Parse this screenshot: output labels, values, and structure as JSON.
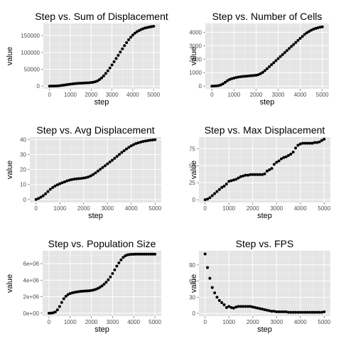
{
  "panel_bg": "#e5e5e5",
  "grid_color": "#ffffff",
  "point_color": "#000000",
  "chart_data": [
    {
      "type": "scatter",
      "title": "Step vs. Sum of Displacement",
      "xlabel": "step",
      "ylabel": "value",
      "grid": true,
      "xlim": [
        -300,
        5300
      ],
      "ylim": [
        -8000,
        186000
      ],
      "xticks": [
        0,
        1000,
        2000,
        3000,
        4000,
        5000
      ],
      "xtick_labels": [
        "0",
        "1000",
        "2000",
        "3000",
        "4000",
        "5000"
      ],
      "yticks": [
        0,
        50000,
        100000,
        150000
      ],
      "ytick_labels": [
        "0",
        "50000",
        "100000",
        "150000"
      ],
      "x": [
        0,
        100,
        200,
        300,
        400,
        500,
        600,
        700,
        800,
        900,
        1000,
        1100,
        1200,
        1300,
        1400,
        1500,
        1600,
        1700,
        1800,
        1900,
        2000,
        2100,
        2200,
        2300,
        2400,
        2500,
        2600,
        2700,
        2800,
        2900,
        3000,
        3100,
        3200,
        3300,
        3400,
        3500,
        3600,
        3700,
        3800,
        3900,
        4000,
        4100,
        4200,
        4300,
        4400,
        4500,
        4600,
        4700,
        4800,
        4900,
        5000
      ],
      "y": [
        0,
        100,
        200,
        400,
        800,
        1400,
        2200,
        3100,
        4000,
        4900,
        5800,
        6500,
        7200,
        7800,
        8300,
        8700,
        9000,
        9300,
        9600,
        10000,
        10600,
        11500,
        13000,
        15500,
        19500,
        24500,
        30500,
        37500,
        45500,
        54000,
        63000,
        72500,
        82000,
        91500,
        101000,
        110500,
        120000,
        129000,
        137500,
        145000,
        151500,
        157000,
        161500,
        165000,
        168000,
        170500,
        172500,
        174000,
        175500,
        176500,
        177500
      ]
    },
    {
      "type": "scatter",
      "title": "Step vs. Number of Cells",
      "xlabel": "step",
      "ylabel": "value",
      "grid": true,
      "xlim": [
        -300,
        5300
      ],
      "ylim": [
        -200,
        4650
      ],
      "xticks": [
        0,
        1000,
        2000,
        3000,
        4000,
        5000
      ],
      "xtick_labels": [
        "0",
        "1000",
        "2000",
        "3000",
        "4000",
        "5000"
      ],
      "yticks": [
        0,
        1000,
        2000,
        3000,
        4000
      ],
      "ytick_labels": [
        "0",
        "1000",
        "2000",
        "3000",
        "4000"
      ],
      "x": [
        0,
        100,
        200,
        300,
        400,
        500,
        600,
        700,
        800,
        900,
        1000,
        1100,
        1200,
        1300,
        1400,
        1500,
        1600,
        1700,
        1800,
        1900,
        2000,
        2100,
        2200,
        2300,
        2400,
        2500,
        2600,
        2700,
        2800,
        2900,
        3000,
        3100,
        3200,
        3300,
        3400,
        3500,
        3600,
        3700,
        3800,
        3900,
        4000,
        4100,
        4200,
        4300,
        4400,
        4500,
        4600,
        4700,
        4800,
        4900,
        5000
      ],
      "y": [
        0,
        5,
        15,
        40,
        90,
        170,
        280,
        400,
        490,
        550,
        600,
        640,
        670,
        695,
        715,
        730,
        745,
        760,
        775,
        790,
        810,
        850,
        920,
        1020,
        1150,
        1290,
        1440,
        1590,
        1740,
        1890,
        2040,
        2190,
        2340,
        2490,
        2640,
        2790,
        2940,
        3090,
        3240,
        3390,
        3540,
        3690,
        3840,
        3960,
        4060,
        4150,
        4220,
        4280,
        4330,
        4370,
        4400
      ]
    },
    {
      "type": "scatter",
      "title": "Step vs. Avg Displacement",
      "xlabel": "step",
      "ylabel": "value",
      "grid": true,
      "xlim": [
        -260,
        5260
      ],
      "ylim": [
        -2,
        41.7
      ],
      "xticks": [
        0,
        1000,
        2000,
        3000,
        4000,
        5000
      ],
      "xtick_labels": [
        "0",
        "1000",
        "2000",
        "3000",
        "4000",
        "5000"
      ],
      "yticks": [
        0,
        10,
        20,
        30,
        40
      ],
      "ytick_labels": [
        "0",
        "10",
        "20",
        "30",
        "40"
      ],
      "x": [
        0,
        100,
        200,
        300,
        400,
        500,
        600,
        700,
        800,
        900,
        1000,
        1100,
        1200,
        1300,
        1400,
        1500,
        1600,
        1700,
        1800,
        1900,
        2000,
        2100,
        2200,
        2300,
        2400,
        2500,
        2600,
        2700,
        2800,
        2900,
        3000,
        3100,
        3200,
        3300,
        3400,
        3500,
        3600,
        3700,
        3800,
        3900,
        4000,
        4100,
        4200,
        4300,
        4400,
        4500,
        4600,
        4700,
        4800,
        4900,
        5000
      ],
      "y": [
        0,
        0.7,
        1.5,
        2.5,
        3.8,
        5.3,
        6.8,
        8.0,
        9.0,
        9.8,
        10.5,
        11.2,
        11.8,
        12.4,
        12.9,
        13.3,
        13.6,
        13.8,
        14.0,
        14.1,
        14.3,
        14.6,
        15.1,
        15.8,
        16.7,
        17.8,
        19.0,
        20.2,
        21.4,
        22.6,
        23.8,
        25.0,
        26.2,
        27.5,
        28.8,
        30.1,
        31.4,
        32.6,
        33.8,
        34.9,
        35.9,
        36.7,
        37.4,
        37.9,
        38.4,
        38.8,
        39.1,
        39.4,
        39.6,
        39.8,
        40.0
      ]
    },
    {
      "type": "scatter",
      "title": "Step vs. Max Displacement",
      "xlabel": "step",
      "ylabel": "value",
      "grid": true,
      "xlim": [
        -260,
        5260
      ],
      "ylim": [
        -4,
        92
      ],
      "xticks": [
        0,
        1000,
        2000,
        3000,
        4000,
        5000
      ],
      "xtick_labels": [
        "0",
        "1000",
        "2000",
        "3000",
        "4000",
        "5000"
      ],
      "yticks": [
        0,
        25,
        50,
        75
      ],
      "ytick_labels": [
        "0",
        "25",
        "50",
        "75"
      ],
      "x": [
        0,
        100,
        200,
        300,
        400,
        500,
        600,
        700,
        800,
        900,
        1000,
        1100,
        1200,
        1300,
        1400,
        1500,
        1600,
        1700,
        1800,
        1900,
        2000,
        2100,
        2200,
        2300,
        2400,
        2500,
        2600,
        2700,
        2800,
        2900,
        3000,
        3100,
        3200,
        3300,
        3400,
        3500,
        3600,
        3700,
        3800,
        3900,
        4000,
        4100,
        4200,
        4300,
        4400,
        4500,
        4600,
        4700,
        4800,
        4900,
        5000
      ],
      "y": [
        0,
        1,
        3,
        6,
        9,
        12,
        15,
        18,
        20,
        23,
        27,
        28,
        29,
        30,
        32,
        34,
        35,
        36,
        36,
        37,
        37,
        37,
        37,
        37,
        37,
        38,
        42,
        44,
        46,
        52,
        55,
        57,
        60,
        62,
        63,
        65,
        67,
        70,
        76,
        80,
        82,
        83,
        83,
        83,
        83,
        83,
        84,
        84,
        85,
        87,
        89
      ]
    },
    {
      "type": "scatter",
      "title": "Step vs. Population Size",
      "xlabel": "step",
      "ylabel": "value",
      "grid": true,
      "xlim": [
        -300,
        5300
      ],
      "ylim": [
        -360000,
        7560000
      ],
      "xticks": [
        0,
        1000,
        2000,
        3000,
        4000,
        5000
      ],
      "xtick_labels": [
        "0",
        "1000",
        "2000",
        "3000",
        "4000",
        "5000"
      ],
      "yticks": [
        0,
        2000000,
        4000000,
        6000000
      ],
      "ytick_labels": [
        "0e+00",
        "2e+06",
        "4e+06",
        "6e+06"
      ],
      "x": [
        0,
        100,
        200,
        300,
        400,
        500,
        600,
        700,
        800,
        900,
        1000,
        1100,
        1200,
        1300,
        1400,
        1500,
        1600,
        1700,
        1800,
        1900,
        2000,
        2100,
        2200,
        2300,
        2400,
        2500,
        2600,
        2700,
        2800,
        2900,
        3000,
        3100,
        3200,
        3300,
        3400,
        3500,
        3600,
        3700,
        3800,
        3900,
        4000,
        4100,
        4200,
        4300,
        4400,
        4500,
        4600,
        4700,
        4800,
        4900,
        5000
      ],
      "y": [
        0,
        10000,
        50000,
        150000,
        400000,
        800000,
        1300000,
        1750000,
        2050000,
        2250000,
        2380000,
        2460000,
        2520000,
        2570000,
        2610000,
        2640000,
        2660000,
        2680000,
        2700000,
        2720000,
        2750000,
        2800000,
        2880000,
        2990000,
        3130000,
        3300000,
        3500000,
        3750000,
        4050000,
        4400000,
        4800000,
        5250000,
        5700000,
        6100000,
        6450000,
        6750000,
        6950000,
        7060000,
        7110000,
        7130000,
        7140000,
        7150000,
        7150000,
        7150000,
        7150000,
        7150000,
        7150000,
        7150000,
        7150000,
        7150000,
        7150000
      ]
    },
    {
      "type": "scatter",
      "title": "Step vs. FPS",
      "xlabel": "step",
      "ylabel": "value",
      "grid": true,
      "xlim": [
        -260,
        5260
      ],
      "ylim": [
        -5,
        116
      ],
      "xticks": [
        0,
        1000,
        2000,
        3000,
        4000,
        5000
      ],
      "xtick_labels": [
        "0",
        "1000",
        "2000",
        "3000",
        "4000",
        "5000"
      ],
      "yticks": [
        0,
        30,
        60,
        90
      ],
      "ytick_labels": [
        "0",
        "30",
        "60",
        "90"
      ],
      "x": [
        0,
        100,
        200,
        300,
        400,
        500,
        600,
        700,
        800,
        900,
        1000,
        1100,
        1200,
        1300,
        1400,
        1500,
        1600,
        1700,
        1800,
        1900,
        2000,
        2100,
        2200,
        2300,
        2400,
        2500,
        2600,
        2700,
        2800,
        2900,
        3000,
        3100,
        3200,
        3300,
        3400,
        3500,
        3600,
        3700,
        3800,
        3900,
        4000,
        4100,
        4200,
        4300,
        4400,
        4500,
        4600,
        4700,
        4800,
        4900,
        5000
      ],
      "y": [
        110,
        85,
        65,
        48,
        38,
        30,
        24,
        20,
        16,
        11,
        13,
        11,
        10,
        12,
        13,
        13,
        13,
        13,
        13,
        13,
        12,
        11,
        10,
        9,
        8,
        7,
        6,
        5,
        4,
        4,
        3,
        3,
        3,
        3,
        3,
        2,
        2,
        2,
        2,
        2,
        2,
        2,
        2,
        2,
        2,
        2,
        2,
        2,
        2,
        2,
        3
      ]
    }
  ]
}
